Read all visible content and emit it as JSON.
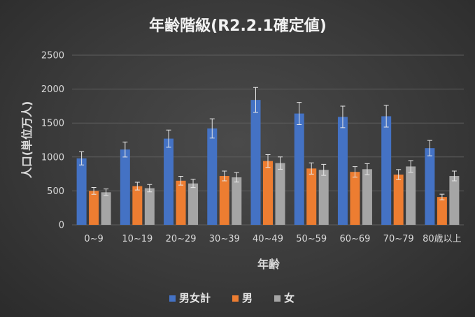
{
  "chart_data": {
    "type": "bar",
    "title": "年齢階級(R2.2.1確定値)",
    "xlabel": "年齢",
    "ylabel": "人口(単位万人)",
    "ylim": [
      0,
      2500
    ],
    "yticks": [
      0,
      500,
      1000,
      1500,
      2000,
      2500
    ],
    "grid": true,
    "legend_position": "bottom",
    "error_bars": "±10%",
    "categories": [
      "0~9",
      "10~19",
      "20~29",
      "30~39",
      "40~49",
      "50~59",
      "60~69",
      "70~79",
      "80歳以上"
    ],
    "series": [
      {
        "name": "男女計",
        "color": "#4472c4",
        "values": [
          980,
          1110,
          1270,
          1420,
          1840,
          1640,
          1590,
          1600,
          1130
        ]
      },
      {
        "name": "男",
        "color": "#ed7d31",
        "values": [
          500,
          570,
          650,
          720,
          940,
          830,
          780,
          740,
          410
        ]
      },
      {
        "name": "女",
        "color": "#a5a5a5",
        "values": [
          480,
          540,
          610,
          700,
          910,
          810,
          820,
          860,
          720
        ]
      }
    ]
  }
}
